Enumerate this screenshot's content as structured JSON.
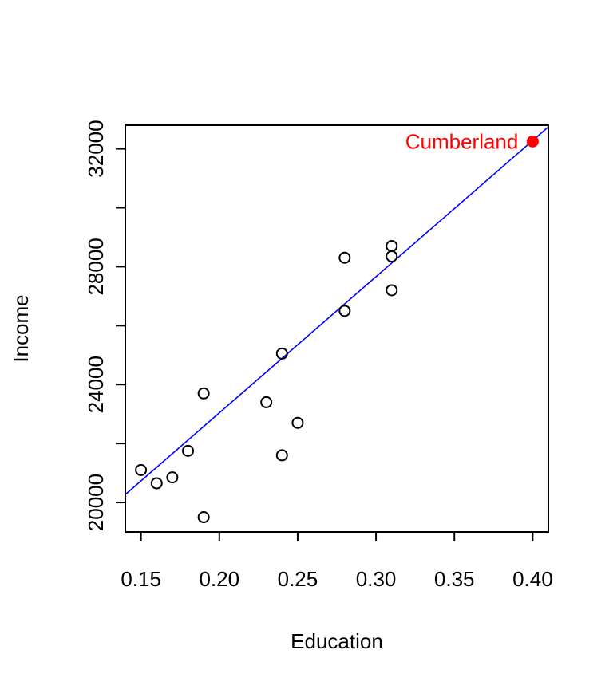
{
  "chart_data": {
    "type": "scatter",
    "title": "",
    "xlabel": "Education",
    "ylabel": "Income",
    "xlim": [
      0.14,
      0.41
    ],
    "ylim": [
      19000,
      32800
    ],
    "x_ticks": [
      0.15,
      0.2,
      0.25,
      0.3,
      0.35,
      0.4
    ],
    "x_tick_labels": [
      "0.15",
      "0.20",
      "0.25",
      "0.30",
      "0.35",
      "0.40"
    ],
    "y_ticks": [
      20000,
      22000,
      24000,
      26000,
      28000,
      30000,
      32000
    ],
    "y_tick_labels": [
      "20000",
      "",
      "24000",
      "",
      "28000",
      "",
      "32000"
    ],
    "grid": false,
    "series": [
      {
        "points": [
          {
            "x": 0.15,
            "y": 21100
          },
          {
            "x": 0.16,
            "y": 20650
          },
          {
            "x": 0.17,
            "y": 20850
          },
          {
            "x": 0.18,
            "y": 21750
          },
          {
            "x": 0.19,
            "y": 23700
          },
          {
            "x": 0.19,
            "y": 19500
          },
          {
            "x": 0.23,
            "y": 23400
          },
          {
            "x": 0.24,
            "y": 25050
          },
          {
            "x": 0.24,
            "y": 21600
          },
          {
            "x": 0.25,
            "y": 22700
          },
          {
            "x": 0.28,
            "y": 28300
          },
          {
            "x": 0.28,
            "y": 26500
          },
          {
            "x": 0.31,
            "y": 28700
          },
          {
            "x": 0.31,
            "y": 28350
          },
          {
            "x": 0.31,
            "y": 27200
          }
        ],
        "marker": "open-circle",
        "color": "#000000"
      }
    ],
    "highlight": {
      "label": "Cumberland",
      "x": 0.4,
      "y": 32250,
      "color": "#ff0000"
    },
    "fit_line": {
      "intercept": 13800,
      "slope": 46200,
      "color": "#0000ff"
    }
  }
}
